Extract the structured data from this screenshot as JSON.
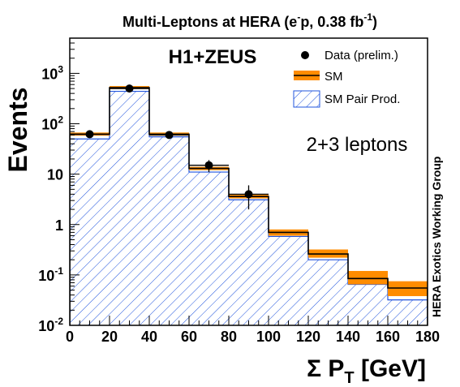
{
  "chart_data": {
    "type": "bar",
    "title": "Multi-Leptons at HERA (e⁻p, 0.38 fb⁻¹)",
    "title_parts": {
      "main": "Multi-Leptons at HERA (e",
      "sup1": "-",
      "mid": "p, 0.38 fb",
      "sup2": "-1",
      "end": ")"
    },
    "xlabel": "Σ P",
    "xlabel_sub": "T",
    "xlabel_unit": "[GeV]",
    "ylabel": "Events",
    "experiment_label": "H1+ZEUS",
    "selection_label": "2+3 leptons",
    "side_label": "HERA Exotics Working Group",
    "xlim": [
      0,
      180
    ],
    "ylim": [
      0.01,
      5000
    ],
    "log_y": true,
    "bin_edges": [
      0,
      20,
      40,
      60,
      80,
      100,
      120,
      140,
      160,
      180
    ],
    "x_ticks": [
      "0",
      "20",
      "40",
      "60",
      "80",
      "100",
      "120",
      "140",
      "160",
      "180"
    ],
    "y_ticks": [
      {
        "value": 0.01,
        "label": "10",
        "sup": "-2"
      },
      {
        "value": 0.1,
        "label": "10",
        "sup": "-1"
      },
      {
        "value": 1,
        "label": "1",
        "sup": ""
      },
      {
        "value": 10,
        "label": "10",
        "sup": ""
      },
      {
        "value": 100,
        "label": "10",
        "sup": "2"
      },
      {
        "value": 1000,
        "label": "10",
        "sup": "3"
      }
    ],
    "legend_position": "top-right",
    "series": [
      {
        "name": "Data (prelim.)",
        "kind": "points",
        "x": [
          10,
          30,
          50,
          70,
          90
        ],
        "values": [
          62,
          500,
          60,
          15,
          4
        ],
        "err_low": [
          8,
          22,
          8,
          4,
          2
        ],
        "err_high": [
          8,
          22,
          8,
          4,
          2
        ],
        "color": "#000000"
      },
      {
        "name": "SM",
        "kind": "band",
        "values": [
          62,
          520,
          62,
          13,
          3.6,
          0.7,
          0.26,
          0.085,
          0.055
        ],
        "band_low": [
          58,
          490,
          58,
          12,
          3.3,
          0.6,
          0.22,
          0.065,
          0.038
        ],
        "band_high": [
          67,
          560,
          67,
          14,
          3.9,
          0.8,
          0.32,
          0.12,
          0.075
        ],
        "color": "#ff8c00"
      },
      {
        "name": "SM Pair Prod.",
        "kind": "hatched",
        "values": [
          50,
          440,
          55,
          11,
          3.1,
          0.58,
          0.2,
          0.065,
          0.032
        ],
        "color": "#2255dd"
      }
    ]
  }
}
